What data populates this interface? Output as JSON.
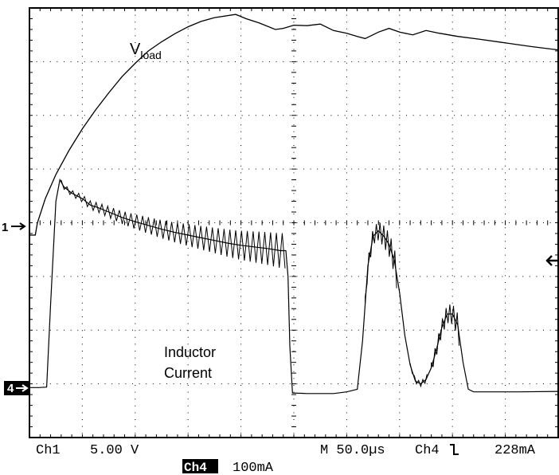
{
  "chart_data": {
    "type": "line",
    "title": "",
    "xlabel": "",
    "ylabel": "",
    "grid": true,
    "divisions": {
      "x": 10,
      "y": 8
    },
    "series": [
      {
        "name": "Vload",
        "name_main": "V",
        "name_sub": "load",
        "channel": "1",
        "scale": "5.00 V",
        "unit": "div",
        "points": [
          [
            0.0,
            3.77
          ],
          [
            0.08,
            3.77
          ],
          [
            0.22,
            3.77
          ],
          [
            0.3,
            4.0
          ],
          [
            0.6,
            4.45
          ],
          [
            1.0,
            4.9
          ],
          [
            1.5,
            5.35
          ],
          [
            2.0,
            5.75
          ],
          [
            2.5,
            6.1
          ],
          [
            3.0,
            6.42
          ],
          [
            3.5,
            6.72
          ],
          [
            4.0,
            6.97
          ],
          [
            4.5,
            7.2
          ],
          [
            5.0,
            7.37
          ],
          [
            5.5,
            7.52
          ],
          [
            6.0,
            7.65
          ],
          [
            6.5,
            7.75
          ],
          [
            7.0,
            7.82
          ],
          [
            7.8,
            7.88
          ],
          [
            8.2,
            7.8
          ],
          [
            8.7,
            7.72
          ],
          [
            9.3,
            7.6
          ],
          [
            9.6,
            7.62
          ],
          [
            10.0,
            7.68
          ],
          [
            10.5,
            7.67
          ],
          [
            11.0,
            7.7
          ],
          [
            11.5,
            7.58
          ],
          [
            12.0,
            7.53
          ],
          [
            12.4,
            7.47
          ],
          [
            12.7,
            7.43
          ],
          [
            13.2,
            7.55
          ],
          [
            13.6,
            7.62
          ],
          [
            14.0,
            7.55
          ],
          [
            14.5,
            7.5
          ],
          [
            15.0,
            7.58
          ],
          [
            15.5,
            7.53
          ],
          [
            16.2,
            7.47
          ],
          [
            17.0,
            7.42
          ],
          [
            18.0,
            7.35
          ],
          [
            19.0,
            7.28
          ],
          [
            20.0,
            7.22
          ]
        ]
      },
      {
        "name": "Inductor Current",
        "name_lines": [
          "Inductor",
          "Current"
        ],
        "channel": "4",
        "scale": "100mA",
        "unit": "div",
        "points": [
          [
            0.0,
            0.93
          ],
          [
            0.35,
            0.93
          ],
          [
            0.65,
            0.94
          ],
          [
            0.8,
            2.5
          ],
          [
            1.0,
            4.4
          ],
          [
            1.15,
            4.8
          ],
          [
            1.3,
            4.67
          ],
          [
            1.6,
            4.55
          ],
          [
            2.0,
            4.45
          ],
          [
            2.3,
            4.33
          ],
          [
            2.6,
            4.28
          ],
          [
            3.0,
            4.2
          ],
          [
            3.5,
            4.1
          ],
          [
            4.0,
            4.02
          ],
          [
            4.5,
            3.95
          ],
          [
            5.0,
            3.88
          ],
          [
            5.5,
            3.82
          ],
          [
            6.0,
            3.77
          ],
          [
            6.5,
            3.72
          ],
          [
            7.0,
            3.67
          ],
          [
            7.5,
            3.62
          ],
          [
            8.0,
            3.58
          ],
          [
            8.5,
            3.55
          ],
          [
            9.0,
            3.52
          ],
          [
            9.5,
            3.48
          ],
          [
            9.7,
            3.48
          ],
          [
            9.78,
            3.0
          ],
          [
            9.85,
            1.7
          ],
          [
            9.95,
            0.83
          ],
          [
            10.5,
            0.82
          ],
          [
            11.5,
            0.82
          ],
          [
            12.0,
            0.85
          ],
          [
            12.4,
            0.9
          ],
          [
            12.6,
            1.8
          ],
          [
            12.8,
            3.2
          ],
          [
            13.0,
            3.75
          ],
          [
            13.2,
            3.85
          ],
          [
            13.4,
            3.75
          ],
          [
            13.6,
            3.6
          ],
          [
            13.8,
            3.3
          ],
          [
            14.0,
            2.7
          ],
          [
            14.2,
            1.9
          ],
          [
            14.4,
            1.35
          ],
          [
            14.6,
            1.05
          ],
          [
            14.8,
            1.0
          ],
          [
            15.0,
            1.08
          ],
          [
            15.2,
            1.3
          ],
          [
            15.4,
            1.65
          ],
          [
            15.6,
            2.05
          ],
          [
            15.8,
            2.3
          ],
          [
            16.0,
            2.3
          ],
          [
            16.2,
            2.1
          ],
          [
            16.4,
            1.4
          ],
          [
            16.6,
            0.9
          ],
          [
            16.8,
            0.85
          ],
          [
            17.5,
            0.85
          ],
          [
            18.5,
            0.85
          ],
          [
            20.0,
            0.86
          ]
        ]
      }
    ],
    "markers": {
      "ch1_marker": "1",
      "ch4_marker": "4",
      "right_marker": "arrow-left-icon"
    },
    "readout": {
      "ch1_label": "Ch1",
      "ch1_scale": "5.00 V",
      "timebase": "M 50.0µs",
      "trigger_channel": "Ch4",
      "trigger_slope": "falling-edge-icon",
      "trigger_level": "228mA",
      "ch4_label": "Ch4",
      "ch4_scale": "100mA"
    },
    "colors": {
      "background": "#ffffff",
      "trace": "#000000",
      "grid": "#000000"
    }
  }
}
